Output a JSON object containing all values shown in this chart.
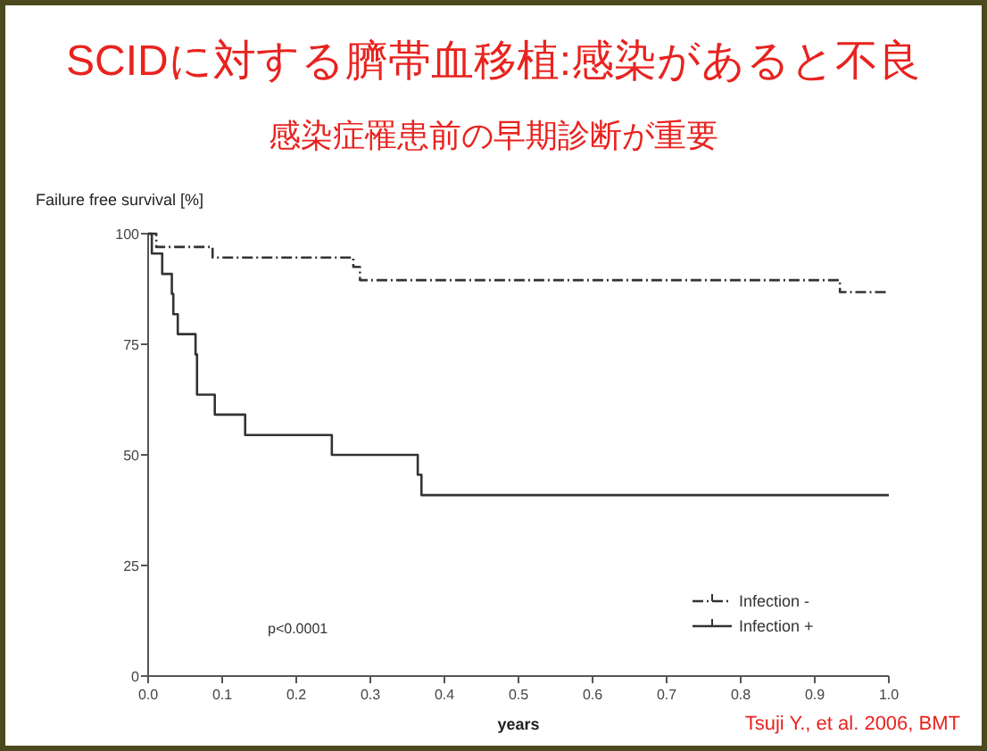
{
  "chart_data": {
    "type": "step",
    "title": "SCIDに対する臍帯血移植:感染があると不良",
    "subtitle": "感染症罹患前の早期診断が重要",
    "ylabel": "Failure free survival [%]",
    "xlabel": "years",
    "annotations": [
      "p<0.0001",
      "Tsuji Y., et al. 2006, BMT"
    ],
    "xlim": [
      0,
      1
    ],
    "ylim": [
      0,
      100
    ],
    "xticks": [
      {
        "value": 0,
        "label": "0.0"
      },
      {
        "value": 0.1,
        "label": "0.1"
      },
      {
        "value": 0.2,
        "label": "0.2"
      },
      {
        "value": 0.3,
        "label": "0.3"
      },
      {
        "value": 0.4,
        "label": "0.4"
      },
      {
        "value": 0.5,
        "label": "0.5"
      },
      {
        "value": 0.6,
        "label": "0.6"
      },
      {
        "value": 0.7,
        "label": "0.7"
      },
      {
        "value": 0.8,
        "label": "0.8"
      },
      {
        "value": 0.9,
        "label": "0.9"
      },
      {
        "value": 1,
        "label": "1.0"
      }
    ],
    "yticks": [
      0,
      25,
      50,
      75,
      100
    ],
    "legend": "bottom right",
    "grid": false,
    "marker": "none",
    "series": [
      {
        "name": "Infection -",
        "color": "#333333",
        "line_style": "dashed",
        "x": [
          0,
          0.011,
          0.087,
          0.277,
          0.286,
          0.934,
          1
        ],
        "values": [
          100,
          97,
          94.6,
          92.5,
          89.5,
          86.8,
          86.8
        ]
      },
      {
        "name": "Infection +",
        "color": "#333333",
        "line_style": "solid",
        "x": [
          0,
          0.005,
          0.019,
          0.032,
          0.034,
          0.04,
          0.064,
          0.066,
          0.09,
          0.131,
          0.248,
          0.364,
          0.369,
          1
        ],
        "values": [
          100,
          95.5,
          90.9,
          86.4,
          81.8,
          77.3,
          72.7,
          63.6,
          59.1,
          54.5,
          50,
          45.5,
          40.9,
          40.9
        ]
      }
    ]
  }
}
